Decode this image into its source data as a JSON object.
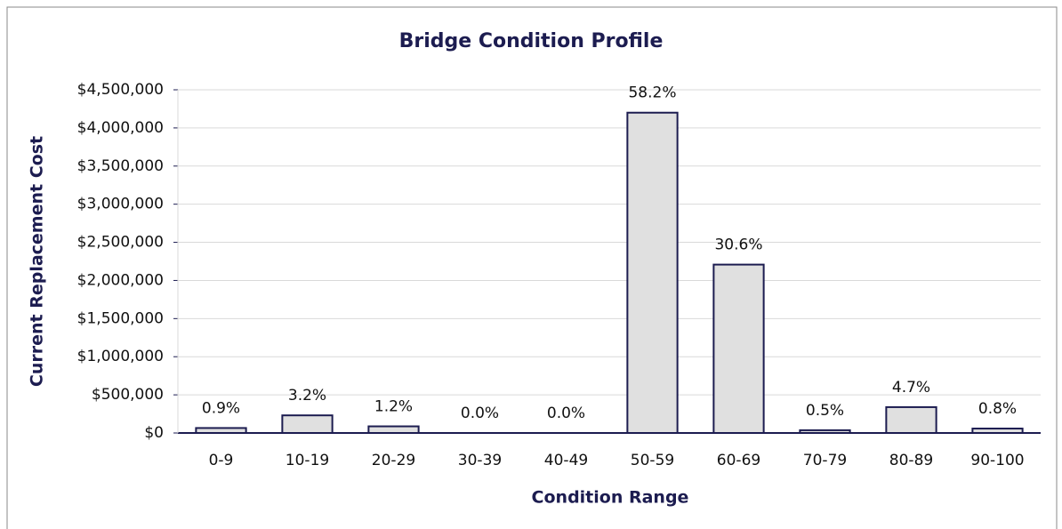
{
  "chart_data": {
    "type": "bar",
    "title": "Bridge Condition Profile",
    "x_label": "Condition Range",
    "y_label": "Current Replacement Cost",
    "categories": [
      "0-9",
      "10-19",
      "20-29",
      "30-39",
      "40-49",
      "50-59",
      "60-69",
      "70-79",
      "80-89",
      "90-100"
    ],
    "values": [
      65000,
      231000,
      87000,
      0,
      0,
      4200000,
      2208000,
      36000,
      339000,
      58000
    ],
    "share_labels": [
      "0.9%",
      "3.2%",
      "1.2%",
      "0.0%",
      "0.0%",
      "58.2%",
      "30.6%",
      "0.5%",
      "4.7%",
      "0.8%"
    ],
    "color": "#e0e0e0",
    "edge_color": "#1c1c50",
    "ylim": [
      0,
      4500000
    ],
    "yticks": [
      {
        "value": 0,
        "label": "$0"
      },
      {
        "value": 500000,
        "label": "$500,000"
      },
      {
        "value": 1000000,
        "label": "$1,000,000"
      },
      {
        "value": 1500000,
        "label": "$1,500,000"
      },
      {
        "value": 2000000,
        "label": "$2,000,000"
      },
      {
        "value": 2500000,
        "label": "$2,500,000"
      },
      {
        "value": 3000000,
        "label": "$3,000,000"
      },
      {
        "value": 3500000,
        "label": "$3,500,000"
      },
      {
        "value": 4000000,
        "label": "$4,000,000"
      },
      {
        "value": 4500000,
        "label": "$4,500,000"
      }
    ],
    "grid": true
  }
}
